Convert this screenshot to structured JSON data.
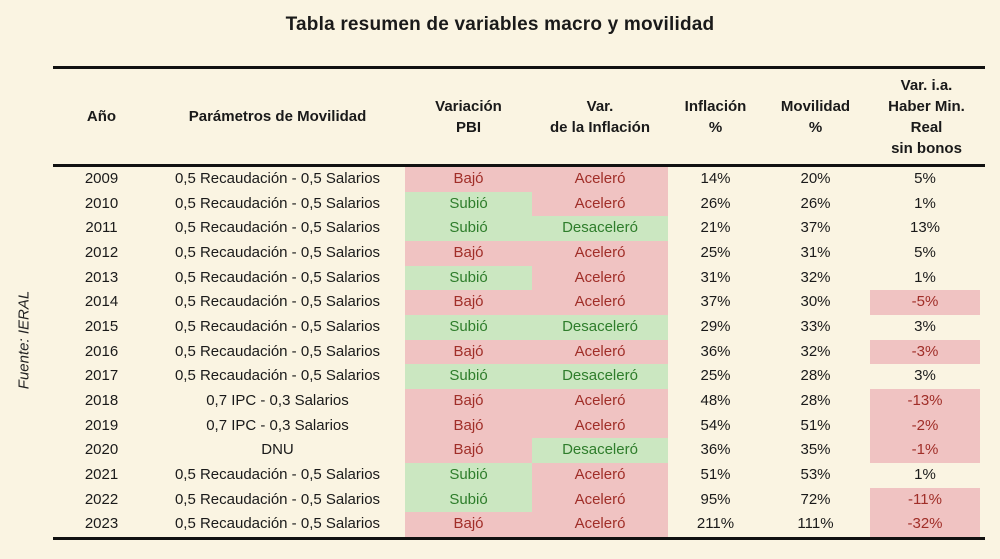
{
  "title": "Tabla resumen de variables macro y movilidad",
  "source": "Fuente: IERAL",
  "colors": {
    "page_bg": "#FAF4E2",
    "negative_bg": "#F0C3C2",
    "positive_bg": "#CBE7C1",
    "negative_text": "#A02E28",
    "positive_text": "#2E7D2B",
    "text": "#1A1A1A",
    "rule": "#111111"
  },
  "chart_data": {
    "type": "table",
    "columns": [
      {
        "id": "year",
        "label": "Año"
      },
      {
        "id": "params",
        "label": "Parámetros de Movilidad"
      },
      {
        "id": "pbi",
        "label": "Variación\nPBI"
      },
      {
        "id": "infl_var",
        "label": "Var.\nde la Inflación"
      },
      {
        "id": "inflation",
        "label": "Inflación\n%"
      },
      {
        "id": "mobility",
        "label": "Movilidad\n%"
      },
      {
        "id": "pension",
        "label": "Var. i.a.\nHaber Min.\nReal\nsin bonos"
      }
    ],
    "rows": [
      {
        "year": "2009",
        "params": "0,5 Recaudación - 0,5 Salarios",
        "pbi": "Bajó",
        "pbi_state": "neg",
        "infl_var": "Aceleró",
        "infl_state": "neg",
        "inflation": "14%",
        "mobility": "20%",
        "pension": "5%",
        "pension_state": "none"
      },
      {
        "year": "2010",
        "params": "0,5 Recaudación - 0,5 Salarios",
        "pbi": "Subió",
        "pbi_state": "pos",
        "infl_var": "Aceleró",
        "infl_state": "neg",
        "inflation": "26%",
        "mobility": "26%",
        "pension": "1%",
        "pension_state": "none"
      },
      {
        "year": "2011",
        "params": "0,5 Recaudación - 0,5 Salarios",
        "pbi": "Subió",
        "pbi_state": "pos",
        "infl_var": "Desaceleró",
        "infl_state": "pos",
        "inflation": "21%",
        "mobility": "37%",
        "pension": "13%",
        "pension_state": "none"
      },
      {
        "year": "2012",
        "params": "0,5 Recaudación - 0,5 Salarios",
        "pbi": "Bajó",
        "pbi_state": "neg",
        "infl_var": "Aceleró",
        "infl_state": "neg",
        "inflation": "25%",
        "mobility": "31%",
        "pension": "5%",
        "pension_state": "none"
      },
      {
        "year": "2013",
        "params": "0,5 Recaudación - 0,5 Salarios",
        "pbi": "Subió",
        "pbi_state": "pos",
        "infl_var": "Aceleró",
        "infl_state": "neg",
        "inflation": "31%",
        "mobility": "32%",
        "pension": "1%",
        "pension_state": "none"
      },
      {
        "year": "2014",
        "params": "0,5 Recaudación - 0,5 Salarios",
        "pbi": "Bajó",
        "pbi_state": "neg",
        "infl_var": "Aceleró",
        "infl_state": "neg",
        "inflation": "37%",
        "mobility": "30%",
        "pension": "-5%",
        "pension_state": "neg"
      },
      {
        "year": "2015",
        "params": "0,5 Recaudación - 0,5 Salarios",
        "pbi": "Subió",
        "pbi_state": "pos",
        "infl_var": "Desaceleró",
        "infl_state": "pos",
        "inflation": "29%",
        "mobility": "33%",
        "pension": "3%",
        "pension_state": "none"
      },
      {
        "year": "2016",
        "params": "0,5 Recaudación - 0,5 Salarios",
        "pbi": "Bajó",
        "pbi_state": "neg",
        "infl_var": "Aceleró",
        "infl_state": "neg",
        "inflation": "36%",
        "mobility": "32%",
        "pension": "-3%",
        "pension_state": "neg"
      },
      {
        "year": "2017",
        "params": "0,5 Recaudación - 0,5 Salarios",
        "pbi": "Subió",
        "pbi_state": "pos",
        "infl_var": "Desaceleró",
        "infl_state": "pos",
        "inflation": "25%",
        "mobility": "28%",
        "pension": "3%",
        "pension_state": "none"
      },
      {
        "year": "2018",
        "params": "0,7 IPC - 0,3 Salarios",
        "pbi": "Bajó",
        "pbi_state": "neg",
        "infl_var": "Aceleró",
        "infl_state": "neg",
        "inflation": "48%",
        "mobility": "28%",
        "pension": "-13%",
        "pension_state": "neg"
      },
      {
        "year": "2019",
        "params": "0,7 IPC - 0,3 Salarios",
        "pbi": "Bajó",
        "pbi_state": "neg",
        "infl_var": "Aceleró",
        "infl_state": "neg",
        "inflation": "54%",
        "mobility": "51%",
        "pension": "-2%",
        "pension_state": "neg"
      },
      {
        "year": "2020",
        "params": "DNU",
        "pbi": "Bajó",
        "pbi_state": "neg",
        "infl_var": "Desaceleró",
        "infl_state": "pos",
        "inflation": "36%",
        "mobility": "35%",
        "pension": "-1%",
        "pension_state": "neg"
      },
      {
        "year": "2021",
        "params": "0,5 Recaudación - 0,5 Salarios",
        "pbi": "Subió",
        "pbi_state": "pos",
        "infl_var": "Aceleró",
        "infl_state": "neg",
        "inflation": "51%",
        "mobility": "53%",
        "pension": "1%",
        "pension_state": "none"
      },
      {
        "year": "2022",
        "params": "0,5 Recaudación - 0,5 Salarios",
        "pbi": "Subió",
        "pbi_state": "pos",
        "infl_var": "Aceleró",
        "infl_state": "neg",
        "inflation": "95%",
        "mobility": "72%",
        "pension": "-11%",
        "pension_state": "neg"
      },
      {
        "year": "2023",
        "params": "0,5 Recaudación - 0,5 Salarios",
        "pbi": "Bajó",
        "pbi_state": "neg",
        "infl_var": "Aceleró",
        "infl_state": "neg",
        "inflation": "211%",
        "mobility": "111%",
        "pension": "-32%",
        "pension_state": "neg"
      }
    ]
  }
}
